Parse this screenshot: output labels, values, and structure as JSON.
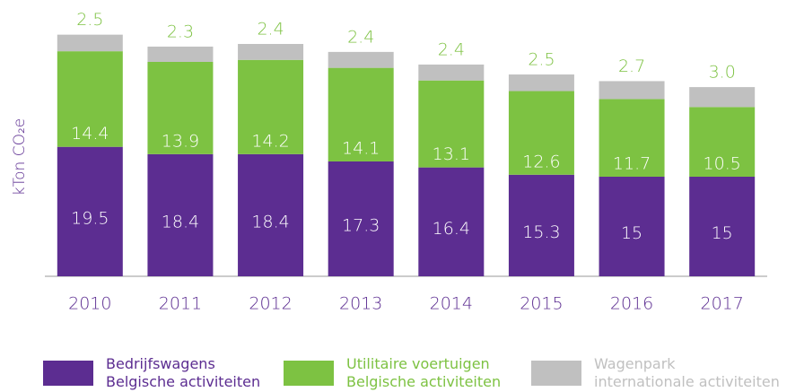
{
  "chart_data": {
    "type": "bar",
    "stacked": true,
    "y_label": "kTon CO₂e",
    "categories": [
      "2010",
      "2011",
      "2012",
      "2013",
      "2014",
      "2015",
      "2016",
      "2017"
    ],
    "series": [
      {
        "name": "Bedrijfswagens\nBelgische activiteiten",
        "color": "#5c2d91",
        "values": [
          19.5,
          18.4,
          18.4,
          17.3,
          16.4,
          15.3,
          15,
          15
        ]
      },
      {
        "name": "Utilitaire voertuigen\nBelgische activiteiten",
        "color": "#7dc242",
        "values": [
          14.4,
          13.9,
          14.2,
          14.1,
          13.1,
          12.6,
          11.7,
          10.5
        ]
      },
      {
        "name": "Wagenpark\ninternationale activiteiten",
        "color": "#c0c0c0",
        "values": [
          2.5,
          2.3,
          2.4,
          2.4,
          2.4,
          2.5,
          2.7,
          3.0
        ],
        "value_labels": [
          "2.5",
          "2.3",
          "2.4",
          "2.4",
          "2.4",
          "2.5",
          "2.7",
          "3.0"
        ]
      }
    ],
    "ylim": [
      0,
      40
    ]
  }
}
